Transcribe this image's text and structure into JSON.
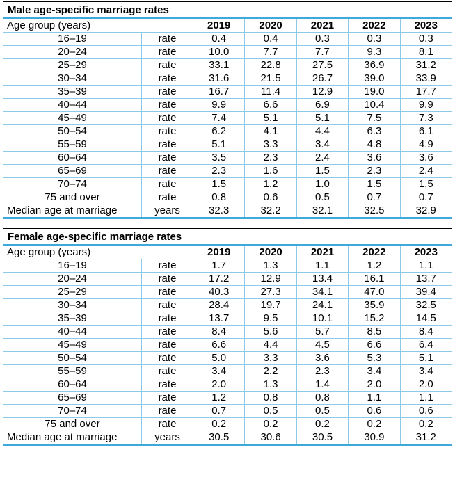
{
  "colors": {
    "accent_border": "#3FA9DC",
    "cell_border": "#8FC9E9",
    "title_border": "#000000",
    "text": "#000000",
    "background": "#ffffff"
  },
  "chart_data": [
    {
      "type": "table",
      "title": "Male age-specific marriage rates",
      "header_label": "Age group (years)",
      "columns": [
        "2019",
        "2020",
        "2021",
        "2022",
        "2023"
      ],
      "rows": [
        {
          "label": "16–19",
          "unit": "rate",
          "values": [
            "0.4",
            "0.4",
            "0.3",
            "0.3",
            "0.3"
          ]
        },
        {
          "label": "20–24",
          "unit": "rate",
          "values": [
            "10.0",
            "7.7",
            "7.7",
            "9.3",
            "8.1"
          ]
        },
        {
          "label": "25–29",
          "unit": "rate",
          "values": [
            "33.1",
            "22.8",
            "27.5",
            "36.9",
            "31.2"
          ]
        },
        {
          "label": "30–34",
          "unit": "rate",
          "values": [
            "31.6",
            "21.5",
            "26.7",
            "39.0",
            "33.9"
          ]
        },
        {
          "label": "35–39",
          "unit": "rate",
          "values": [
            "16.7",
            "11.4",
            "12.9",
            "19.0",
            "17.7"
          ]
        },
        {
          "label": "40–44",
          "unit": "rate",
          "values": [
            "9.9",
            "6.6",
            "6.9",
            "10.4",
            "9.9"
          ]
        },
        {
          "label": "45–49",
          "unit": "rate",
          "values": [
            "7.4",
            "5.1",
            "5.1",
            "7.5",
            "7.3"
          ]
        },
        {
          "label": "50–54",
          "unit": "rate",
          "values": [
            "6.2",
            "4.1",
            "4.4",
            "6.3",
            "6.1"
          ]
        },
        {
          "label": "55–59",
          "unit": "rate",
          "values": [
            "5.1",
            "3.3",
            "3.4",
            "4.8",
            "4.9"
          ]
        },
        {
          "label": "60–64",
          "unit": "rate",
          "values": [
            "3.5",
            "2.3",
            "2.4",
            "3.6",
            "3.6"
          ]
        },
        {
          "label": "65–69",
          "unit": "rate",
          "values": [
            "2.3",
            "1.6",
            "1.5",
            "2.3",
            "2.4"
          ]
        },
        {
          "label": "70–74",
          "unit": "rate",
          "values": [
            "1.5",
            "1.2",
            "1.0",
            "1.5",
            "1.5"
          ]
        },
        {
          "label": "75 and over",
          "unit": "rate",
          "values": [
            "0.8",
            "0.6",
            "0.5",
            "0.7",
            "0.7"
          ]
        }
      ],
      "footer": {
        "label": "Median age at marriage",
        "unit": "years",
        "values": [
          "32.3",
          "32.2",
          "32.1",
          "32.5",
          "32.9"
        ]
      }
    },
    {
      "type": "table",
      "title": "Female age-specific marriage rates",
      "header_label": "Age group (years)",
      "columns": [
        "2019",
        "2020",
        "2021",
        "2022",
        "2023"
      ],
      "rows": [
        {
          "label": "16–19",
          "unit": "rate",
          "values": [
            "1.7",
            "1.3",
            "1.1",
            "1.2",
            "1.1"
          ]
        },
        {
          "label": "20–24",
          "unit": "rate",
          "values": [
            "17.2",
            "12.9",
            "13.4",
            "16.1",
            "13.7"
          ]
        },
        {
          "label": "25–29",
          "unit": "rate",
          "values": [
            "40.3",
            "27.3",
            "34.1",
            "47.0",
            "39.4"
          ]
        },
        {
          "label": "30–34",
          "unit": "rate",
          "values": [
            "28.4",
            "19.7",
            "24.1",
            "35.9",
            "32.5"
          ]
        },
        {
          "label": "35–39",
          "unit": "rate",
          "values": [
            "13.7",
            "9.5",
            "10.1",
            "15.2",
            "14.5"
          ]
        },
        {
          "label": "40–44",
          "unit": "rate",
          "values": [
            "8.4",
            "5.6",
            "5.7",
            "8.5",
            "8.4"
          ]
        },
        {
          "label": "45–49",
          "unit": "rate",
          "values": [
            "6.6",
            "4.4",
            "4.5",
            "6.6",
            "6.4"
          ]
        },
        {
          "label": "50–54",
          "unit": "rate",
          "values": [
            "5.0",
            "3.3",
            "3.6",
            "5.3",
            "5.1"
          ]
        },
        {
          "label": "55–59",
          "unit": "rate",
          "values": [
            "3.4",
            "2.2",
            "2.3",
            "3.4",
            "3.4"
          ]
        },
        {
          "label": "60–64",
          "unit": "rate",
          "values": [
            "2.0",
            "1.3",
            "1.4",
            "2.0",
            "2.0"
          ]
        },
        {
          "label": "65–69",
          "unit": "rate",
          "values": [
            "1.2",
            "0.8",
            "0.8",
            "1.1",
            "1.1"
          ]
        },
        {
          "label": "70–74",
          "unit": "rate",
          "values": [
            "0.7",
            "0.5",
            "0.5",
            "0.6",
            "0.6"
          ]
        },
        {
          "label": "75 and over",
          "unit": "rate",
          "values": [
            "0.2",
            "0.2",
            "0.2",
            "0.2",
            "0.2"
          ]
        }
      ],
      "footer": {
        "label": "Median age at marriage",
        "unit": "years",
        "values": [
          "30.5",
          "30.6",
          "30.5",
          "30.9",
          "31.2"
        ]
      }
    }
  ]
}
